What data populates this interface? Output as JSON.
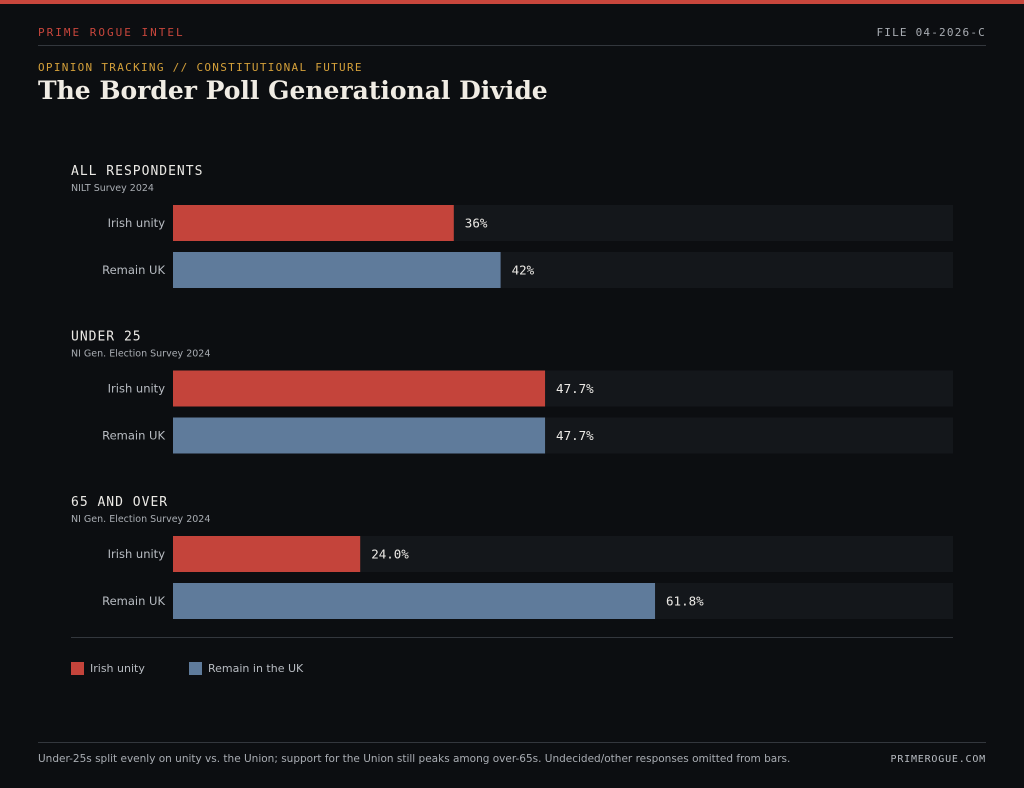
{
  "header": {
    "brand": "PRIME ROGUE INTEL",
    "file_id": "FILE 04-2026-C",
    "kicker": "OPINION TRACKING // CONSTITUTIONAL FUTURE",
    "title": "The Border Poll Generational Divide"
  },
  "colors": {
    "irish_unity": "#c4443b",
    "remain_uk": "#5f7b9b",
    "track": "#14171b"
  },
  "chart_data": {
    "type": "bar",
    "orientation": "horizontal",
    "value_max": 100,
    "groups": [
      {
        "title": "ALL RESPONDENTS",
        "source": "NILT Survey 2024",
        "bars": [
          {
            "label": "Irish unity",
            "value": 36,
            "display": "36%",
            "color_key": "irish_unity"
          },
          {
            "label": "Remain UK",
            "value": 42,
            "display": "42%",
            "color_key": "remain_uk"
          }
        ]
      },
      {
        "title": "UNDER 25",
        "source": "NI Gen. Election Survey 2024",
        "bars": [
          {
            "label": "Irish unity",
            "value": 47.7,
            "display": "47.7%",
            "color_key": "irish_unity"
          },
          {
            "label": "Remain UK",
            "value": 47.7,
            "display": "47.7%",
            "color_key": "remain_uk"
          }
        ]
      },
      {
        "title": "65 AND OVER",
        "source": "NI Gen. Election Survey 2024",
        "bars": [
          {
            "label": "Irish unity",
            "value": 24.0,
            "display": "24.0%",
            "color_key": "irish_unity"
          },
          {
            "label": "Remain UK",
            "value": 61.8,
            "display": "61.8%",
            "color_key": "remain_uk"
          }
        ]
      }
    ],
    "legend": [
      {
        "label": "Irish unity",
        "color_key": "irish_unity"
      },
      {
        "label": "Remain in the UK",
        "color_key": "remain_uk"
      }
    ]
  },
  "footer": {
    "note": "Under-25s split evenly on unity vs. the Union; support for the Union still peaks among over-65s. Undecided/other responses omitted from bars.",
    "site": "PRIMEROGUE.COM"
  }
}
